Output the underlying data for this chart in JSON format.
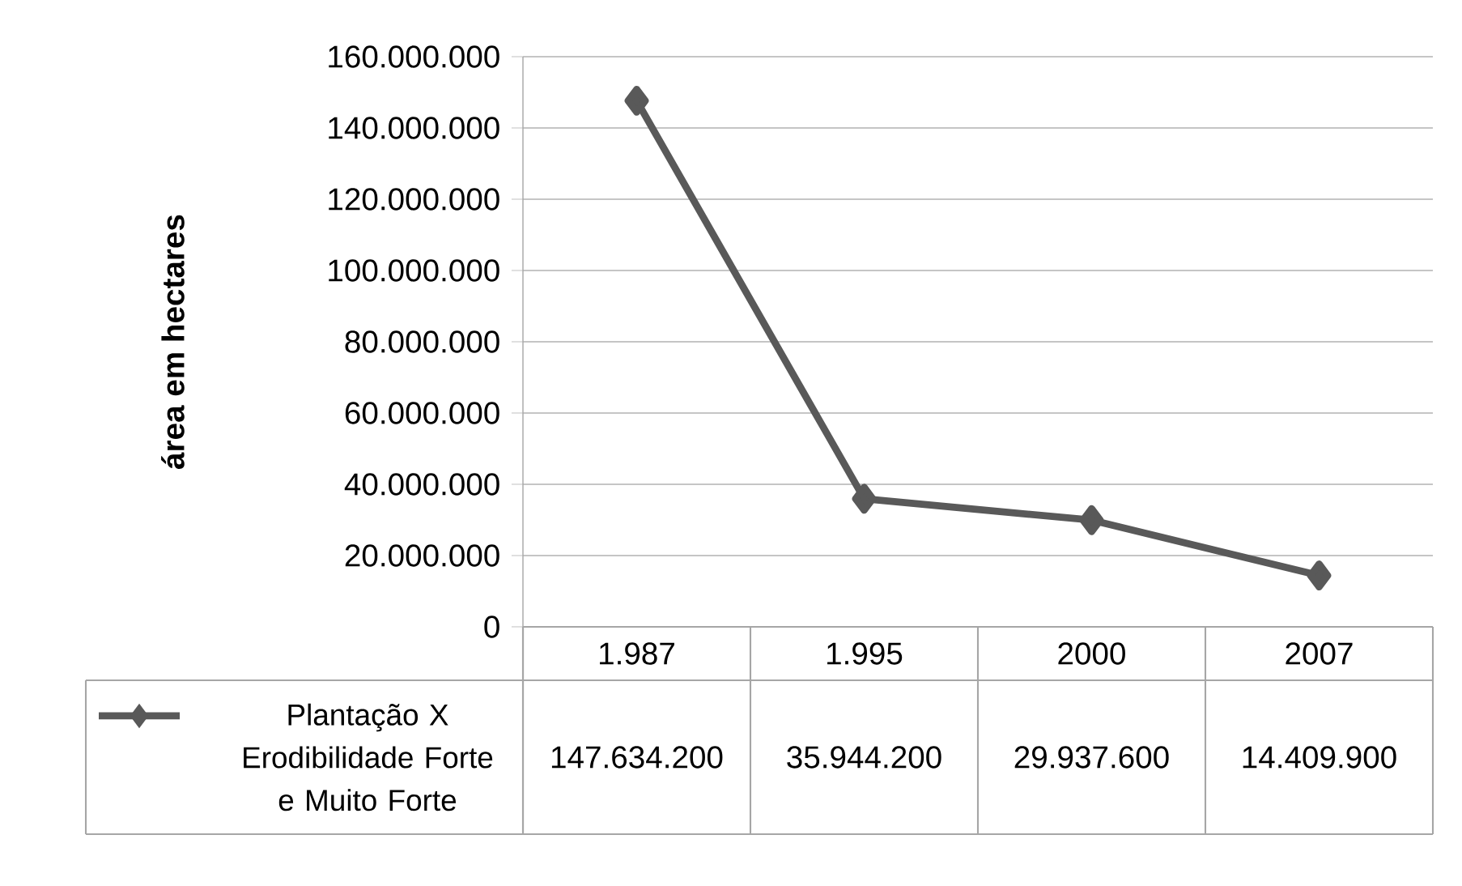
{
  "chart_data": {
    "type": "line",
    "ylabel": "área em hectares",
    "categories": [
      "1.987",
      "1.995",
      "2000",
      "2007"
    ],
    "series": [
      {
        "name": "Plantação X Erodibilidade Forte e Muito Forte",
        "color": "#595959",
        "values": [
          147634200,
          35944200,
          29937600,
          14409900
        ],
        "value_labels": [
          "147.634.200",
          "35.944.200",
          "29.937.600",
          "14.409.900"
        ]
      }
    ],
    "ylim": [
      0,
      160000000
    ],
    "yticks": [
      0,
      {
        "value": 20000000,
        "label": "20.000.000"
      },
      {
        "value": 40000000,
        "label": "40.000.000"
      },
      {
        "value": 60000000,
        "label": "60.000.000"
      },
      {
        "value": 80000000,
        "label": "80.000.000"
      },
      {
        "value": 100000000,
        "label": "100.000.000"
      },
      {
        "value": 120000000,
        "label": "120.000.000"
      },
      {
        "value": 140000000,
        "label": "140.000.000"
      },
      {
        "value": 160000000,
        "label": "160.000.000"
      }
    ],
    "grid": "y",
    "marker": "diamond",
    "line_style": "solid",
    "legend": "bottom left"
  }
}
